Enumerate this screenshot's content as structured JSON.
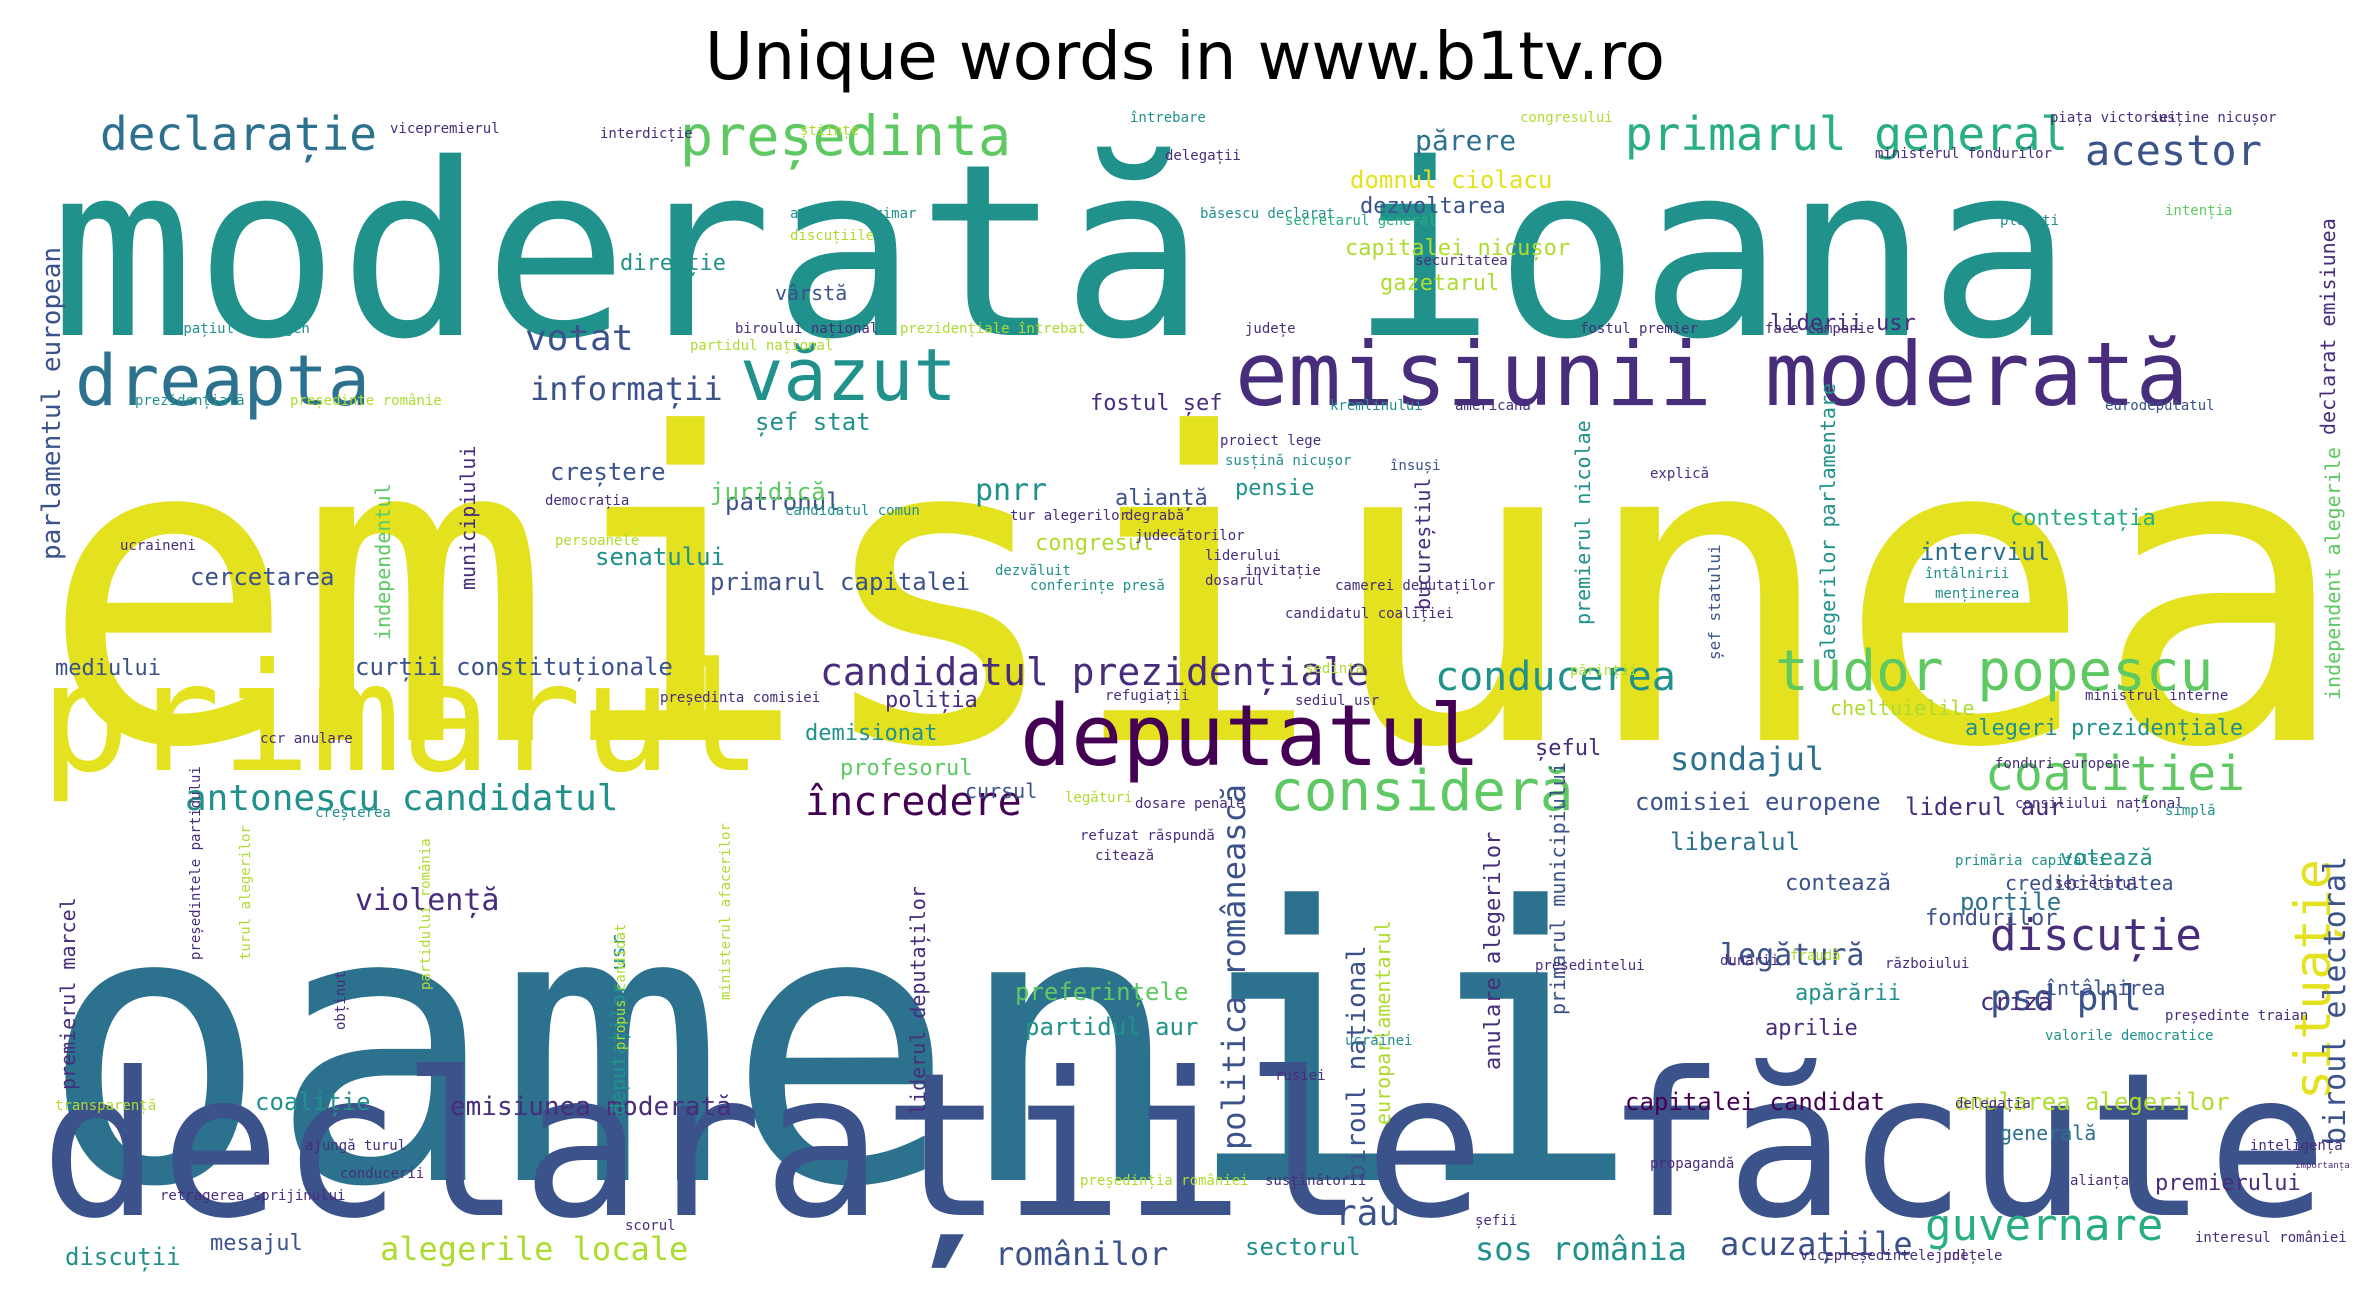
{
  "chart_data": {
    "type": "wordcloud",
    "title": "Unique words in www.b1tv.ro",
    "palette": [
      "#440154",
      "#472d7b",
      "#3b528b",
      "#2c728e",
      "#21918c",
      "#28ae80",
      "#5ec962",
      "#addc30",
      "#e4e11e"
    ],
    "words": [
      {
        "text": "emisiunea",
        "color": "#e4e11e"
      },
      {
        "text": "oamenii",
        "color": "#2c728e"
      },
      {
        "text": "moderată ioana",
        "color": "#21918c"
      },
      {
        "text": "declarațiile făcute",
        "color": "#3b528b"
      },
      {
        "text": "primarul",
        "color": "#e4e11e"
      },
      {
        "text": "emisiunii moderată",
        "color": "#472d7b"
      },
      {
        "text": "deputatul",
        "color": "#440154"
      },
      {
        "text": "dreapta",
        "color": "#2c728e"
      },
      {
        "text": "văzut",
        "color": "#21918c"
      },
      {
        "text": "tudor popescu",
        "color": "#5ec962"
      },
      {
        "text": "consideră",
        "color": "#5ec962"
      },
      {
        "text": "președinta",
        "color": "#5ec962"
      },
      {
        "text": "primarul general",
        "color": "#28ae80"
      },
      {
        "text": "declarație",
        "color": "#2c728e"
      },
      {
        "text": "acestor",
        "color": "#3b528b"
      },
      {
        "text": "coaliției",
        "color": "#5ec962"
      },
      {
        "text": "situație",
        "color": "#e4e11e"
      },
      {
        "text": "guvernare",
        "color": "#28ae80"
      },
      {
        "text": "conducerea",
        "color": "#21918c"
      },
      {
        "text": "candidatul prezidențiale",
        "color": "#472d7b"
      },
      {
        "text": "încredere",
        "color": "#440154"
      },
      {
        "text": "discuție",
        "color": "#472d7b"
      },
      {
        "text": "antonescu candidatul",
        "color": "#21918c"
      },
      {
        "text": "votat",
        "color": "#3b528b"
      },
      {
        "text": "informații",
        "color": "#3b528b"
      },
      {
        "text": "sondajul",
        "color": "#2c728e"
      },
      {
        "text": "psd pnl",
        "color": "#3b528b"
      },
      {
        "text": "rău",
        "color": "#3b528b"
      },
      {
        "text": "legătură",
        "color": "#3b528b"
      },
      {
        "text": "violență",
        "color": "#472d7b"
      },
      {
        "text": "pnrr",
        "color": "#21918c"
      },
      {
        "text": "biroul electoral",
        "color": "#3b528b"
      },
      {
        "text": "politica românească",
        "color": "#3b528b"
      },
      {
        "text": "parlamentul european",
        "color": "#3b528b"
      },
      {
        "text": "emisiunea moderată",
        "color": "#472d7b"
      },
      {
        "text": "alegerile locale",
        "color": "#addc30"
      },
      {
        "text": "românilor",
        "color": "#3b528b"
      },
      {
        "text": "sos românia",
        "color": "#21918c"
      },
      {
        "text": "acuzațiile",
        "color": "#3b528b"
      },
      {
        "text": "curții constituționale",
        "color": "#3b528b"
      },
      {
        "text": "senatului",
        "color": "#21918c"
      },
      {
        "text": "primarul capitalei",
        "color": "#3b528b"
      },
      {
        "text": "cercetarea",
        "color": "#3b528b"
      },
      {
        "text": "creștere",
        "color": "#3b528b"
      },
      {
        "text": "patronul",
        "color": "#3b528b"
      },
      {
        "text": "juridică",
        "color": "#5ec962"
      },
      {
        "text": "șef stat",
        "color": "#21918c"
      },
      {
        "text": "fostul șef",
        "color": "#472d7b"
      },
      {
        "text": "alianță",
        "color": "#3b528b"
      },
      {
        "text": "pensie",
        "color": "#21918c"
      },
      {
        "text": "congresul",
        "color": "#addc30"
      },
      {
        "text": "interviul",
        "color": "#2c728e"
      },
      {
        "text": "contestația",
        "color": "#28ae80"
      },
      {
        "text": "părere",
        "color": "#2c728e"
      },
      {
        "text": "domnul ciolacu",
        "color": "#e4e11e"
      },
      {
        "text": "dezvoltarea",
        "color": "#3b528b"
      },
      {
        "text": "capitalei nicușor",
        "color": "#addc30"
      },
      {
        "text": "gazetarul",
        "color": "#addc30"
      },
      {
        "text": "liderii usr",
        "color": "#472d7b"
      },
      {
        "text": "direcție",
        "color": "#21918c"
      },
      {
        "text": "vârstă",
        "color": "#3b528b"
      },
      {
        "text": "mediului",
        "color": "#3b528b"
      },
      {
        "text": "poliția",
        "color": "#472d7b"
      },
      {
        "text": "demisionat",
        "color": "#21918c"
      },
      {
        "text": "profesorul",
        "color": "#5ec962"
      },
      {
        "text": "cursul",
        "color": "#3b528b"
      },
      {
        "text": "șeful",
        "color": "#472d7b"
      },
      {
        "text": "cheltuielile",
        "color": "#addc30"
      },
      {
        "text": "alegeri prezidențiale",
        "color": "#21918c"
      },
      {
        "text": "comisiei europene",
        "color": "#3b528b"
      },
      {
        "text": "liderul aur",
        "color": "#472d7b"
      },
      {
        "text": "liberalul",
        "color": "#2c728e"
      },
      {
        "text": "votează",
        "color": "#21918c"
      },
      {
        "text": "credibilitatea",
        "color": "#3b528b"
      },
      {
        "text": "contează",
        "color": "#3b528b"
      },
      {
        "text": "fondurilor",
        "color": "#3b528b"
      },
      {
        "text": "porțile",
        "color": "#2c728e"
      },
      {
        "text": "întâlnirea",
        "color": "#3b528b"
      },
      {
        "text": "criză",
        "color": "#472d7b"
      },
      {
        "text": "apărării",
        "color": "#21918c"
      },
      {
        "text": "aprilie",
        "color": "#472d7b"
      },
      {
        "text": "preferințele",
        "color": "#5ec962"
      },
      {
        "text": "partidul aur",
        "color": "#21918c"
      },
      {
        "text": "coaliție",
        "color": "#21918c"
      },
      {
        "text": "capitalei candidat",
        "color": "#440154"
      },
      {
        "text": "anularea alegerilor",
        "color": "#addc30"
      },
      {
        "text": "generală",
        "color": "#2c728e"
      },
      {
        "text": "premierului",
        "color": "#472d7b"
      },
      {
        "text": "discuții",
        "color": "#21918c"
      },
      {
        "text": "mesajul",
        "color": "#3b528b"
      },
      {
        "text": "sectorul",
        "color": "#21918c"
      },
      {
        "text": "premierul marcel",
        "color": "#472d7b"
      },
      {
        "text": "biroul național",
        "color": "#3b528b"
      },
      {
        "text": "europarlamentarul",
        "color": "#addc30"
      },
      {
        "text": "liderul deputaților",
        "color": "#472d7b"
      },
      {
        "text": "deputaților usr",
        "color": "#21918c"
      },
      {
        "text": "independentul",
        "color": "#5ec962"
      },
      {
        "text": "municipiului",
        "color": "#472d7b"
      },
      {
        "text": "bucureștiul",
        "color": "#472d7b"
      },
      {
        "text": "premierul nicolae",
        "color": "#21918c"
      },
      {
        "text": "alegerilor parlamentare",
        "color": "#21918c"
      },
      {
        "text": "anulare alegerilor",
        "color": "#472d7b"
      },
      {
        "text": "primarul municipiului",
        "color": "#3b528b"
      },
      {
        "text": "independent alegerile",
        "color": "#5ec962"
      },
      {
        "text": "declarat emisiunea",
        "color": "#472d7b"
      },
      {
        "text": "șef statului",
        "color": "#3b528b"
      },
      {
        "text": "vicepremierul",
        "color": "#472d7b"
      },
      {
        "text": "interdicție",
        "color": "#472d7b"
      },
      {
        "text": "științe",
        "color": "#addc30"
      },
      {
        "text": "întrebare",
        "color": "#21918c"
      },
      {
        "text": "congresului",
        "color": "#addc30"
      },
      {
        "text": "piața victoriei",
        "color": "#472d7b"
      },
      {
        "text": "susține nicușor",
        "color": "#472d7b"
      },
      {
        "text": "ministerul fondurilor",
        "color": "#472d7b"
      },
      {
        "text": "delegații",
        "color": "#472d7b"
      },
      {
        "text": "actualul primar",
        "color": "#21918c"
      },
      {
        "text": "discuțiile",
        "color": "#addc30"
      },
      {
        "text": "băsescu declarat",
        "color": "#21918c"
      },
      {
        "text": "secretarul general",
        "color": "#28ae80"
      },
      {
        "text": "securitatea",
        "color": "#472d7b"
      },
      {
        "text": "plătiți",
        "color": "#21918c"
      },
      {
        "text": "intenția",
        "color": "#5ec962"
      },
      {
        "text": "spațiul schengen",
        "color": "#21918c"
      },
      {
        "text": "biroului național",
        "color": "#472d7b"
      },
      {
        "text": "partidul național",
        "color": "#addc30"
      },
      {
        "text": "prezidențiale întrebat",
        "color": "#addc30"
      },
      {
        "text": "județe",
        "color": "#472d7b"
      },
      {
        "text": "fostul premier",
        "color": "#472d7b"
      },
      {
        "text": "face campanie",
        "color": "#472d7b"
      },
      {
        "text": "prezidențială",
        "color": "#21918c"
      },
      {
        "text": "președinte românie",
        "color": "#addc30"
      },
      {
        "text": "kremlinului",
        "color": "#21918c"
      },
      {
        "text": "americană",
        "color": "#472d7b"
      },
      {
        "text": "eurodeputatul",
        "color": "#3b528b"
      },
      {
        "text": "proiect lege",
        "color": "#472d7b"
      },
      {
        "text": "susțină nicușor",
        "color": "#21918c"
      },
      {
        "text": "însuși",
        "color": "#3b528b"
      },
      {
        "text": "explică",
        "color": "#472d7b"
      },
      {
        "text": "democrația",
        "color": "#472d7b"
      },
      {
        "text": "candidatul comun",
        "color": "#21918c"
      },
      {
        "text": "tur alegerilor",
        "color": "#472d7b"
      },
      {
        "text": "degrabă",
        "color": "#472d7b"
      },
      {
        "text": "judecătorilor",
        "color": "#472d7b"
      },
      {
        "text": "liderului",
        "color": "#472d7b"
      },
      {
        "text": "invitație",
        "color": "#472d7b"
      },
      {
        "text": "dosarul",
        "color": "#472d7b"
      },
      {
        "text": "conferințe presă",
        "color": "#21918c"
      },
      {
        "text": "camerei deputaților",
        "color": "#472d7b"
      },
      {
        "text": "ucraineni",
        "color": "#472d7b"
      },
      {
        "text": "persoanele",
        "color": "#addc30"
      },
      {
        "text": "dezvăluit",
        "color": "#21918c"
      },
      {
        "text": "întâlnirii",
        "color": "#21918c"
      },
      {
        "text": "candidatul coaliției",
        "color": "#472d7b"
      },
      {
        "text": "menținerea",
        "color": "#21918c"
      },
      {
        "text": "ședința",
        "color": "#addc30"
      },
      {
        "text": "părinții",
        "color": "#addc30"
      },
      {
        "text": "sediul usr",
        "color": "#472d7b"
      },
      {
        "text": "ccr anulare",
        "color": "#472d7b"
      },
      {
        "text": "președinta comisiei",
        "color": "#472d7b"
      },
      {
        "text": "refugiații",
        "color": "#472d7b"
      },
      {
        "text": "ministrul interne",
        "color": "#472d7b"
      },
      {
        "text": "fonduri europene",
        "color": "#472d7b"
      },
      {
        "text": "legături",
        "color": "#addc30"
      },
      {
        "text": "dosare penale",
        "color": "#472d7b"
      },
      {
        "text": "consiliului național",
        "color": "#472d7b"
      },
      {
        "text": "simplă",
        "color": "#21918c"
      },
      {
        "text": "creșterea",
        "color": "#21918c"
      },
      {
        "text": "refuzat răspundă",
        "color": "#472d7b"
      },
      {
        "text": "citează",
        "color": "#472d7b"
      },
      {
        "text": "primăria capitalei",
        "color": "#21918c"
      },
      {
        "text": "secretarul",
        "color": "#472d7b"
      },
      {
        "text": "fraudă",
        "color": "#addc30"
      },
      {
        "text": "dunării",
        "color": "#472d7b"
      },
      {
        "text": "războiului",
        "color": "#472d7b"
      },
      {
        "text": "valorile democratice",
        "color": "#21918c"
      },
      {
        "text": "președinte traian",
        "color": "#472d7b"
      },
      {
        "text": "președintelui",
        "color": "#472d7b"
      },
      {
        "text": "ucrainei",
        "color": "#21918c"
      },
      {
        "text": "rusiei",
        "color": "#472d7b"
      },
      {
        "text": "delegația",
        "color": "#472d7b"
      },
      {
        "text": "inteligență",
        "color": "#472d7b"
      },
      {
        "text": "importanța",
        "color": "#472d7b"
      },
      {
        "text": "ajungă turul",
        "color": "#472d7b"
      },
      {
        "text": "propagandă",
        "color": "#472d7b"
      },
      {
        "text": "susținătorii",
        "color": "#472d7b"
      },
      {
        "text": "președinția româniei",
        "color": "#addc30"
      },
      {
        "text": "șefii",
        "color": "#472d7b"
      },
      {
        "text": "alianța",
        "color": "#472d7b"
      },
      {
        "text": "conducerii",
        "color": "#472d7b"
      },
      {
        "text": "scorul",
        "color": "#472d7b"
      },
      {
        "text": "județele",
        "color": "#472d7b"
      },
      {
        "text": "vicepreședintele pnl",
        "color": "#472d7b"
      },
      {
        "text": "interesul româniei",
        "color": "#472d7b"
      },
      {
        "text": "transparență",
        "color": "#addc30"
      },
      {
        "text": "retragerea sprijinului",
        "color": "#472d7b"
      },
      {
        "text": "președintele partidului",
        "color": "#472d7b"
      },
      {
        "text": "turul alegerilor",
        "color": "#addc30"
      },
      {
        "text": "obținut",
        "color": "#472d7b"
      },
      {
        "text": "partidului românia",
        "color": "#addc30"
      },
      {
        "text": "propus candidat",
        "color": "#addc30"
      },
      {
        "text": "ministerul afacerilor",
        "color": "#addc30"
      }
    ]
  }
}
